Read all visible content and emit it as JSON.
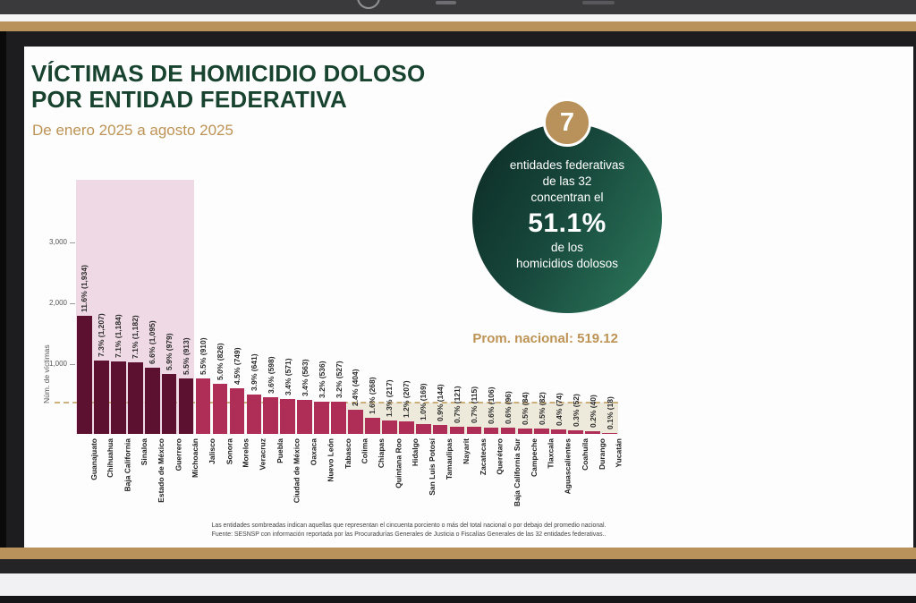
{
  "chrome": {
    "badge_icon": "ring-logo",
    "accent_gold": "#b9915a"
  },
  "slide": {
    "title_line1": "VÍCTIMAS DE HOMICIDIO DOLOSO",
    "title_line2": "POR ENTIDAD FEDERATIVA",
    "subtitle": "De enero 2025 a agosto 2025",
    "highlight": {
      "badge": "7",
      "line1": "entidades federativas",
      "line2": "de las 32",
      "line3": "concentran el",
      "big": "51.1%",
      "line4": "de los",
      "line5": "homicidios dolosos"
    },
    "avg_caption": "Prom. nacional: 519.12",
    "notes": [
      "Las entidades sombreadas indican aquellas que representan el cincuenta porciento o más del total nacional o por debajo del promedio nacional.",
      "Fuente: SESNSP con información reportada por las Procuradurías Generales de Justicia o Fiscalías Generales de las 32 entidades federativas.."
    ]
  },
  "chart_data": {
    "type": "bar",
    "title": "Víctimas de homicidio doloso por entidad federativa, enero 2025 a agosto 2025",
    "ylabel": "Núm. de víctimas",
    "ylim": [
      0,
      3400
    ],
    "yticks": [
      1000,
      2000,
      3000
    ],
    "ytick_labels": [
      "1,000",
      "2,000",
      "3,000"
    ],
    "grid": false,
    "national_average": 519.12,
    "highlight_top_count": 7,
    "below_average_start_index": 16,
    "colors": {
      "bar_top7": "#5c1130",
      "bar_rest": "#ae2e57",
      "shade_top7": "#eed9e4",
      "shade_below_avg": "#edeadb",
      "avg_line": "#c5a469",
      "title_green": "#17432f",
      "accent_gold": "#bd9356"
    },
    "states": [
      {
        "name": "Guanajuato",
        "value": 1934,
        "pct": "11.6%",
        "count": "1,934"
      },
      {
        "name": "Chihuahua",
        "value": 1207,
        "pct": "7.3%",
        "count": "1,207"
      },
      {
        "name": "Baja California",
        "value": 1184,
        "pct": "7.1%",
        "count": "1,184"
      },
      {
        "name": "Sinaloa",
        "value": 1182,
        "pct": "7.1%",
        "count": "1,182"
      },
      {
        "name": "Estado de México",
        "value": 1095,
        "pct": "6.6%",
        "count": "1,095"
      },
      {
        "name": "Guerrero",
        "value": 979,
        "pct": "5.9%",
        "count": "979"
      },
      {
        "name": "Michoacán",
        "value": 913,
        "pct": "5.5%",
        "count": "913"
      },
      {
        "name": "Jalisco",
        "value": 910,
        "pct": "5.5%",
        "count": "910"
      },
      {
        "name": "Sonora",
        "value": 826,
        "pct": "5.0%",
        "count": "826"
      },
      {
        "name": "Morelos",
        "value": 749,
        "pct": "4.5%",
        "count": "749"
      },
      {
        "name": "Veracruz",
        "value": 641,
        "pct": "3.9%",
        "count": "641"
      },
      {
        "name": "Puebla",
        "value": 598,
        "pct": "3.6%",
        "count": "598"
      },
      {
        "name": "Ciudad de México",
        "value": 571,
        "pct": "3.4%",
        "count": "571"
      },
      {
        "name": "Oaxaca",
        "value": 563,
        "pct": "3.4%",
        "count": "563"
      },
      {
        "name": "Nuevo León",
        "value": 536,
        "pct": "3.2%",
        "count": "536"
      },
      {
        "name": "Tabasco",
        "value": 527,
        "pct": "3.2%",
        "count": "527"
      },
      {
        "name": "Colima",
        "value": 404,
        "pct": "2.4%",
        "count": "404"
      },
      {
        "name": "Chiapas",
        "value": 268,
        "pct": "1.6%",
        "count": "268"
      },
      {
        "name": "Quintana Roo",
        "value": 217,
        "pct": "1.3%",
        "count": "217"
      },
      {
        "name": "Hidalgo",
        "value": 207,
        "pct": "1.2%",
        "count": "207"
      },
      {
        "name": "San Luis Potosí",
        "value": 169,
        "pct": "1.0%",
        "count": "169"
      },
      {
        "name": "Tamaulipas",
        "value": 144,
        "pct": "0.9%",
        "count": "144"
      },
      {
        "name": "Nayarit",
        "value": 121,
        "pct": "0.7%",
        "count": "121"
      },
      {
        "name": "Zacatecas",
        "value": 115,
        "pct": "0.7%",
        "count": "115"
      },
      {
        "name": "Querétaro",
        "value": 106,
        "pct": "0.6%",
        "count": "106"
      },
      {
        "name": "Baja California Sur",
        "value": 96,
        "pct": "0.6%",
        "count": "96"
      },
      {
        "name": "Campeche",
        "value": 84,
        "pct": "0.5%",
        "count": "84"
      },
      {
        "name": "Tlaxcala",
        "value": 82,
        "pct": "0.5%",
        "count": "82"
      },
      {
        "name": "Aguascalientes",
        "value": 74,
        "pct": "0.4%",
        "count": "74"
      },
      {
        "name": "Coahuila",
        "value": 52,
        "pct": "0.3%",
        "count": "52"
      },
      {
        "name": "Durango",
        "value": 40,
        "pct": "0.2%",
        "count": "40"
      },
      {
        "name": "Yucatán",
        "value": 18,
        "pct": "0.1%",
        "count": "18"
      }
    ]
  }
}
